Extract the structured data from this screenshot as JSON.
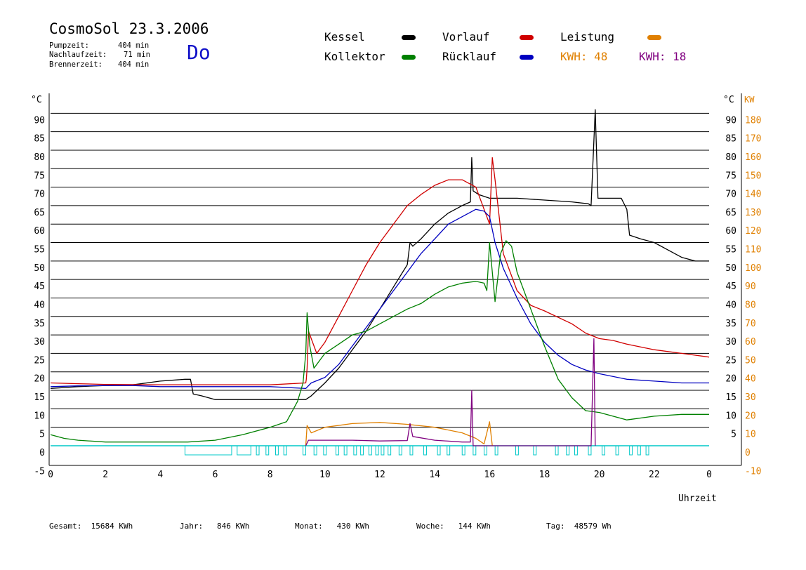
{
  "header": {
    "title": "CosmoSol 23.3.2006",
    "day": "Do",
    "stats": [
      {
        "label": "Pumpzeit:",
        "value": "404 min"
      },
      {
        "label": "Nachlaufzeit:",
        "value": "71 min"
      },
      {
        "label": "Brennerzeit:",
        "value": "404 min"
      }
    ]
  },
  "legend": {
    "kessel": "Kessel",
    "kollektor": "Kollektor",
    "vorlauf": "Vorlauf",
    "ruecklauf": "Rücklauf",
    "leistung": "Leistung",
    "kwh1": "KWH: 48",
    "kwh2": "KWH: 18"
  },
  "colors": {
    "kessel": "#000000",
    "kollektor": "#008000",
    "vorlauf": "#d00000",
    "ruecklauf": "#0000c0",
    "leistung": "#e08000",
    "kwh2": "#800080",
    "pump": "#00c8c8",
    "axis_right": "#e08000"
  },
  "footer": {
    "gesamt": "Gesamt:  15684 KWh",
    "jahr": "Jahr:   846 KWh",
    "monat": "Monat:   430 KWh",
    "woche": "Woche:   144 KWh",
    "tag": "Tag:  48579 Wh"
  },
  "chart_data": {
    "type": "line",
    "title": "CosmoSol 23.3.2006",
    "xlabel": "Uhrzeit",
    "ylabel_left": "°C",
    "ylabel_right": "KW",
    "xlim": [
      0,
      24
    ],
    "ylim": [
      -5,
      92
    ],
    "x_ticks": [
      "0",
      "2",
      "4",
      "6",
      "8",
      "10",
      "12",
      "14",
      "16",
      "18",
      "20",
      "22",
      "0"
    ],
    "y_ticks_left": [
      "-5",
      "0",
      "5",
      "10",
      "15",
      "20",
      "25",
      "30",
      "35",
      "40",
      "45",
      "50",
      "55",
      "60",
      "65",
      "70",
      "75",
      "80",
      "85",
      "90"
    ],
    "y_ticks_right_c": [
      "5",
      "10",
      "15",
      "20",
      "25",
      "30",
      "35",
      "40",
      "45",
      "50",
      "55",
      "60",
      "65",
      "70",
      "75",
      "80",
      "85",
      "90"
    ],
    "y_ticks_right_kw": [
      "-10",
      "0",
      "10",
      "20",
      "30",
      "40",
      "50",
      "60",
      "70",
      "80",
      "90",
      "100",
      "110",
      "120",
      "130",
      "140",
      "150",
      "160",
      "170",
      "180"
    ],
    "grid": true,
    "series": [
      {
        "name": "Kessel",
        "color": "#000000",
        "points": [
          [
            0,
            15.5
          ],
          [
            1,
            16
          ],
          [
            2,
            16.3
          ],
          [
            3,
            16.5
          ],
          [
            4,
            17.5
          ],
          [
            4.9,
            18
          ],
          [
            5.1,
            18
          ],
          [
            5.2,
            14
          ],
          [
            5.5,
            13.5
          ],
          [
            6,
            12.5
          ],
          [
            8,
            12.5
          ],
          [
            9.3,
            12.5
          ],
          [
            9.5,
            13.5
          ],
          [
            10,
            17
          ],
          [
            10.5,
            21
          ],
          [
            11,
            26
          ],
          [
            11.5,
            31
          ],
          [
            12,
            37
          ],
          [
            12.5,
            43
          ],
          [
            13,
            49
          ],
          [
            13.1,
            55
          ],
          [
            13.2,
            54
          ],
          [
            13.5,
            56
          ],
          [
            14,
            60
          ],
          [
            14.5,
            63
          ],
          [
            15,
            65
          ],
          [
            15.3,
            66
          ],
          [
            15.35,
            78
          ],
          [
            15.4,
            69
          ],
          [
            15.6,
            68
          ],
          [
            16,
            67
          ],
          [
            17,
            67
          ],
          [
            18,
            66.5
          ],
          [
            19,
            66
          ],
          [
            19.6,
            65.5
          ],
          [
            19.7,
            65
          ],
          [
            19.85,
            91
          ],
          [
            19.95,
            67
          ],
          [
            20.8,
            67
          ],
          [
            21,
            64
          ],
          [
            21.1,
            57
          ],
          [
            21.5,
            56
          ],
          [
            22,
            55
          ],
          [
            22.5,
            53
          ],
          [
            23,
            51
          ],
          [
            23.5,
            50
          ],
          [
            24,
            50
          ]
        ]
      },
      {
        "name": "Vorlauf",
        "color": "#d00000",
        "points": [
          [
            0,
            17
          ],
          [
            1,
            16.8
          ],
          [
            2,
            16.6
          ],
          [
            4,
            16.5
          ],
          [
            5,
            16.5
          ],
          [
            6,
            16.5
          ],
          [
            8,
            16.5
          ],
          [
            9.3,
            17
          ],
          [
            9.32,
            18
          ],
          [
            9.35,
            21
          ],
          [
            9.4,
            31
          ],
          [
            9.5,
            29
          ],
          [
            9.7,
            25
          ],
          [
            10,
            28
          ],
          [
            10.5,
            35
          ],
          [
            11,
            42
          ],
          [
            11.5,
            49
          ],
          [
            12,
            55
          ],
          [
            12.5,
            60
          ],
          [
            13,
            65
          ],
          [
            13.5,
            68
          ],
          [
            14,
            70.5
          ],
          [
            14.5,
            72
          ],
          [
            15,
            72
          ],
          [
            15.5,
            70
          ],
          [
            15.8,
            64
          ],
          [
            16,
            60
          ],
          [
            16.1,
            78
          ],
          [
            16.2,
            72
          ],
          [
            16.5,
            52
          ],
          [
            17,
            42
          ],
          [
            17.5,
            38
          ],
          [
            18,
            36.5
          ],
          [
            19,
            33
          ],
          [
            19.5,
            30.5
          ],
          [
            20,
            29
          ],
          [
            20.5,
            28.5
          ],
          [
            21,
            27.5
          ],
          [
            22,
            26
          ],
          [
            23,
            25
          ],
          [
            24,
            24
          ]
        ]
      },
      {
        "name": "Rücklauf",
        "color": "#0000c0",
        "points": [
          [
            0,
            16
          ],
          [
            1,
            16.2
          ],
          [
            2,
            16.3
          ],
          [
            3,
            16.3
          ],
          [
            4,
            16
          ],
          [
            5,
            16
          ],
          [
            6,
            16
          ],
          [
            8,
            16
          ],
          [
            9.3,
            15.5
          ],
          [
            9.5,
            17
          ],
          [
            10,
            18.5
          ],
          [
            10.5,
            22
          ],
          [
            11,
            27
          ],
          [
            11.5,
            32
          ],
          [
            12,
            37
          ],
          [
            12.5,
            42
          ],
          [
            13,
            47
          ],
          [
            13.5,
            52
          ],
          [
            14,
            56
          ],
          [
            14.5,
            60
          ],
          [
            15,
            62
          ],
          [
            15.5,
            64
          ],
          [
            15.8,
            63.5
          ],
          [
            16,
            62
          ],
          [
            16.2,
            55
          ],
          [
            16.5,
            48
          ],
          [
            17,
            40
          ],
          [
            17.5,
            33
          ],
          [
            18,
            28
          ],
          [
            18.5,
            24.5
          ],
          [
            19,
            22
          ],
          [
            19.5,
            20.5
          ],
          [
            20,
            19.5
          ],
          [
            21,
            18
          ],
          [
            22,
            17.5
          ],
          [
            23,
            17
          ],
          [
            24,
            17
          ]
        ]
      },
      {
        "name": "Kollektor",
        "color": "#008000",
        "points": [
          [
            0,
            3
          ],
          [
            0.5,
            2
          ],
          [
            1,
            1.5
          ],
          [
            2,
            1
          ],
          [
            3,
            1
          ],
          [
            4,
            1
          ],
          [
            5,
            1
          ],
          [
            6,
            1.5
          ],
          [
            7,
            3
          ],
          [
            8,
            5
          ],
          [
            8.6,
            6.5
          ],
          [
            9,
            12
          ],
          [
            9.2,
            17
          ],
          [
            9.3,
            25
          ],
          [
            9.35,
            36
          ],
          [
            9.45,
            27
          ],
          [
            9.6,
            21
          ],
          [
            10,
            25
          ],
          [
            10.5,
            27.5
          ],
          [
            11,
            30
          ],
          [
            11.5,
            31
          ],
          [
            12,
            33
          ],
          [
            12.5,
            35
          ],
          [
            13,
            37
          ],
          [
            13.5,
            38.5
          ],
          [
            14,
            41
          ],
          [
            14.5,
            43
          ],
          [
            15,
            44
          ],
          [
            15.5,
            44.5
          ],
          [
            15.8,
            44
          ],
          [
            15.9,
            42
          ],
          [
            16,
            55
          ],
          [
            16.2,
            39
          ],
          [
            16.4,
            52
          ],
          [
            16.6,
            55.5
          ],
          [
            16.8,
            54
          ],
          [
            17,
            47
          ],
          [
            17.5,
            37
          ],
          [
            18,
            27
          ],
          [
            18.5,
            18
          ],
          [
            19,
            13
          ],
          [
            19.5,
            9.5
          ],
          [
            20,
            9
          ],
          [
            21,
            7
          ],
          [
            22,
            8
          ],
          [
            23,
            8.5
          ],
          [
            24,
            8.5
          ]
        ]
      },
      {
        "name": "Leistung",
        "color": "#e08000",
        "points": [
          [
            9.3,
            0
          ],
          [
            9.35,
            5.5
          ],
          [
            9.5,
            3.5
          ],
          [
            10,
            5
          ],
          [
            11,
            6
          ],
          [
            12,
            6.3
          ],
          [
            13,
            5.8
          ],
          [
            14,
            5
          ],
          [
            15,
            3.5
          ],
          [
            15.5,
            2
          ],
          [
            15.8,
            0.5
          ],
          [
            16,
            6.5
          ],
          [
            16.1,
            0
          ]
        ]
      },
      {
        "name": "KWH",
        "color": "#800080",
        "points": [
          [
            9.3,
            0
          ],
          [
            9.4,
            1.5
          ],
          [
            10,
            1.5
          ],
          [
            11,
            1.5
          ],
          [
            12,
            1.3
          ],
          [
            13,
            1.4
          ],
          [
            13.1,
            6
          ],
          [
            13.2,
            2.5
          ],
          [
            14,
            1.5
          ],
          [
            15,
            1
          ],
          [
            15.3,
            1
          ],
          [
            15.35,
            15
          ],
          [
            15.4,
            0
          ],
          [
            19.7,
            0
          ],
          [
            19.8,
            29
          ],
          [
            19.85,
            0
          ]
        ]
      }
    ],
    "pump_intervals": [
      [
        4.9,
        6.6
      ],
      [
        6.8,
        7.3
      ],
      [
        7.5,
        7.6
      ],
      [
        7.85,
        7.95
      ],
      [
        8.2,
        8.3
      ],
      [
        8.5,
        8.6
      ],
      [
        9.2,
        9.3
      ],
      [
        9.6,
        9.7
      ],
      [
        9.95,
        10.05
      ],
      [
        10.4,
        10.5
      ],
      [
        10.7,
        10.8
      ],
      [
        11.05,
        11.15
      ],
      [
        11.3,
        11.4
      ],
      [
        11.6,
        11.7
      ],
      [
        11.85,
        11.95
      ],
      [
        12.05,
        12.15
      ],
      [
        12.3,
        12.4
      ],
      [
        12.7,
        12.8
      ],
      [
        13.1,
        13.2
      ],
      [
        13.6,
        13.7
      ],
      [
        14.1,
        14.2
      ],
      [
        14.45,
        14.55
      ],
      [
        15.0,
        15.1
      ],
      [
        15.4,
        15.5
      ],
      [
        15.8,
        15.9
      ],
      [
        16.2,
        16.3
      ],
      [
        16.95,
        17.05
      ],
      [
        17.6,
        17.7
      ],
      [
        18.4,
        18.5
      ],
      [
        18.8,
        18.9
      ],
      [
        19.1,
        19.2
      ],
      [
        19.6,
        19.7
      ],
      [
        20.1,
        20.2
      ],
      [
        20.6,
        20.7
      ],
      [
        21.1,
        21.2
      ],
      [
        21.4,
        21.5
      ],
      [
        21.7,
        21.8
      ]
    ]
  }
}
